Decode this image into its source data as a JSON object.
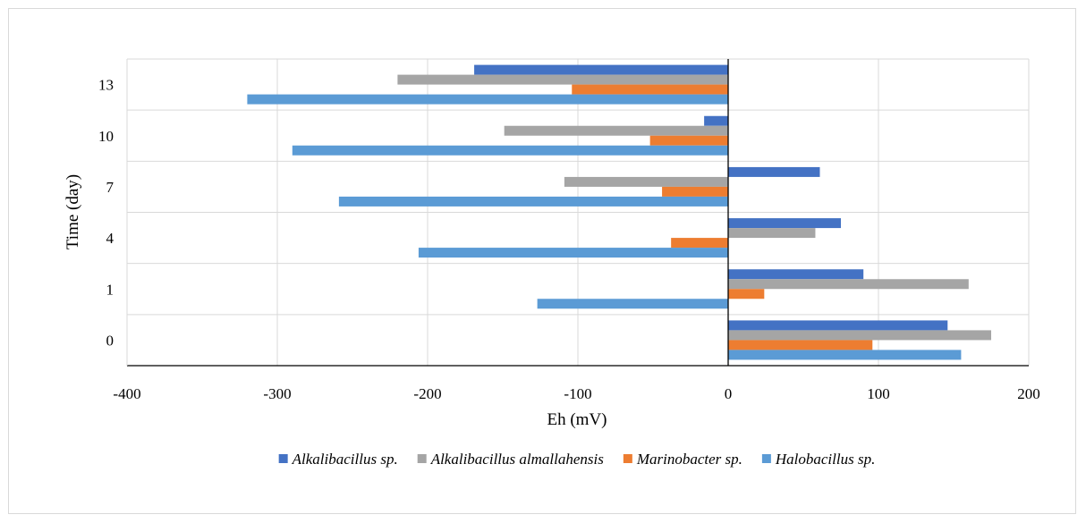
{
  "chart_data": {
    "type": "bar",
    "orientation": "horizontal",
    "title": "",
    "xlabel": "Eh (mV)",
    "ylabel": "Time (day)",
    "xlim": [
      -400,
      200
    ],
    "xticks": [
      "-400",
      "-300",
      "-200",
      "-100",
      "0",
      "100",
      "200"
    ],
    "categories": [
      "0",
      "1",
      "4",
      "7",
      "10",
      "13"
    ],
    "grid": "vertical",
    "legend_position": "bottom",
    "series": [
      {
        "name": "Alkalibacillus sp.",
        "color": "#4472C4",
        "values": [
          146,
          90,
          75,
          61,
          -16,
          -169
        ]
      },
      {
        "name": "Alkalibacillus almallahensis",
        "color": "#A5A5A5",
        "values": [
          175,
          160,
          58,
          -109,
          -149,
          -220
        ]
      },
      {
        "name": "Marinobacter sp.",
        "color": "#ED7D31",
        "values": [
          96,
          24,
          -38,
          -44,
          -52,
          -104
        ]
      },
      {
        "name": "Halobacillus sp.",
        "color": "#5B9BD5",
        "values": [
          155,
          -127,
          -206,
          -259,
          -290,
          -320
        ]
      }
    ]
  }
}
